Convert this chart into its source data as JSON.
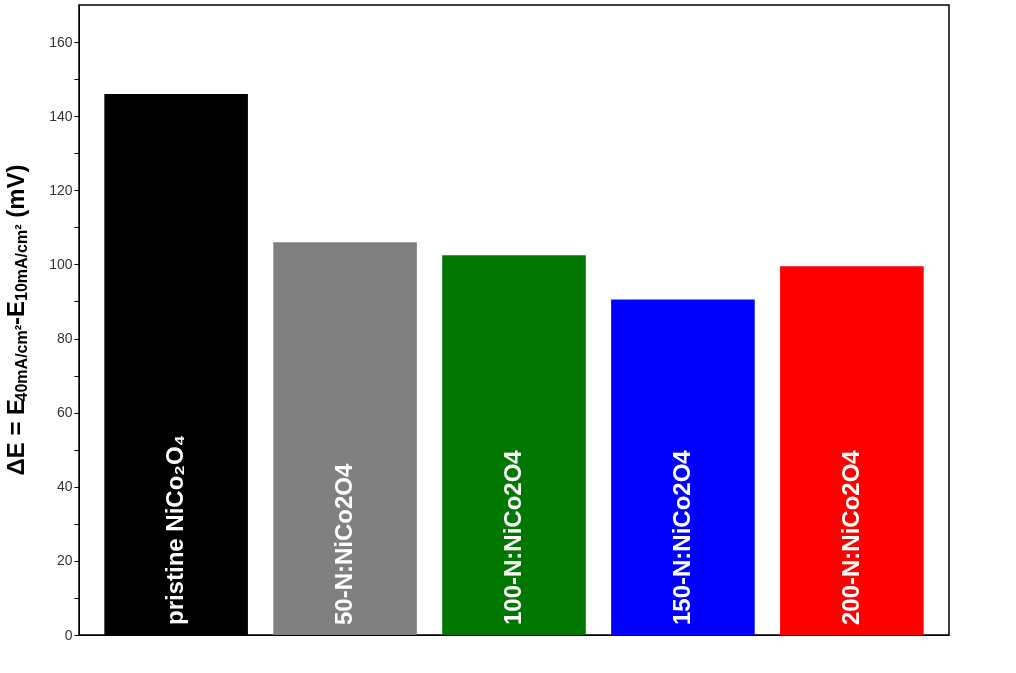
{
  "chart_data": {
    "type": "bar",
    "ylabel": "ΔE = E$_{40mA/cm²}$-E$_{10mA/cm²}$ (mV)",
    "categories": [
      "pristine NiCo₂O₄",
      "50-N:NiCo2O4",
      "100-N:NiCo2O4",
      "150-N:NiCo2O4",
      "200-N:NiCo2O4"
    ],
    "values": [
      146,
      106,
      102.5,
      90.5,
      99.5
    ],
    "colors": [
      "#000000",
      "#808080",
      "#007800",
      "#0000ff",
      "#ff0000"
    ],
    "ylim": [
      0,
      170
    ],
    "yticks": [
      0,
      {
        "value": 10,
        "label": null
      },
      20,
      {
        "value": 30,
        "label": null
      },
      40,
      {
        "value": 50,
        "label": null
      },
      60,
      {
        "value": 70,
        "label": null
      },
      80,
      {
        "value": 90,
        "label": null
      },
      100,
      {
        "value": 110,
        "label": null
      },
      120,
      {
        "value": 130,
        "label": null
      },
      140,
      {
        "value": 150,
        "label": null
      },
      160
    ],
    "tick_labels": "y",
    "grid": false
  }
}
